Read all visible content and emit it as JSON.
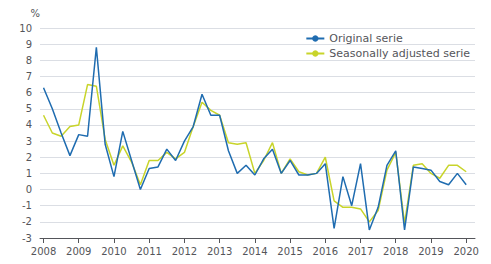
{
  "chart_data": {
    "type": "line",
    "ylabel": "%",
    "x": [
      2008.0,
      2008.25,
      2008.5,
      2008.75,
      2009.0,
      2009.25,
      2009.5,
      2009.75,
      2010.0,
      2010.25,
      2010.5,
      2010.75,
      2011.0,
      2011.25,
      2011.5,
      2011.75,
      2012.0,
      2012.25,
      2012.5,
      2012.75,
      2013.0,
      2013.25,
      2013.5,
      2013.75,
      2014.0,
      2014.25,
      2014.5,
      2014.75,
      2015.0,
      2015.25,
      2015.5,
      2015.75,
      2016.0,
      2016.25,
      2016.5,
      2016.75,
      2017.0,
      2017.25,
      2017.5,
      2017.75,
      2018.0,
      2018.25,
      2018.5,
      2018.75,
      2019.0,
      2019.25,
      2019.5,
      2019.75,
      2020.0
    ],
    "series": [
      {
        "name": "Seasonally adjusted serie",
        "color": "#c8d42a",
        "values": [
          4.6,
          3.5,
          3.3,
          3.9,
          4.0,
          6.5,
          6.4,
          3.1,
          1.5,
          2.7,
          1.7,
          0.3,
          1.8,
          1.8,
          2.3,
          1.9,
          2.3,
          3.9,
          5.4,
          4.9,
          4.6,
          2.9,
          2.8,
          2.9,
          1.0,
          1.8,
          2.9,
          1.0,
          1.9,
          1.1,
          0.9,
          1.0,
          2.0,
          -0.7,
          -1.1,
          -1.1,
          -1.2,
          -2.0,
          -1.3,
          1.2,
          2.3,
          -2.1,
          1.5,
          1.6,
          1.0,
          0.7,
          1.5,
          1.5,
          1.1
        ]
      },
      {
        "name": "Original serie",
        "color": "#1f6cb0",
        "values": [
          6.3,
          5.0,
          3.5,
          2.1,
          3.4,
          3.3,
          8.8,
          2.8,
          0.8,
          3.6,
          1.8,
          0.0,
          1.3,
          1.4,
          2.5,
          1.8,
          3.0,
          3.9,
          5.9,
          4.6,
          4.6,
          2.4,
          1.0,
          1.5,
          0.9,
          1.9,
          2.5,
          1.0,
          1.8,
          0.9,
          0.9,
          1.0,
          1.6,
          -2.4,
          0.8,
          -1.0,
          1.6,
          -2.5,
          -1.1,
          1.5,
          2.4,
          -2.5,
          1.4,
          1.3,
          1.2,
          0.5,
          0.3,
          1.0,
          0.3
        ]
      }
    ],
    "xlim": [
      2007.9,
      2020.25
    ],
    "xticks": [
      2008,
      2009,
      2010,
      2011,
      2012,
      2013,
      2014,
      2015,
      2016,
      2017,
      2018,
      2019,
      2020
    ],
    "ylim": [
      -3,
      10
    ],
    "yticks": [
      -3,
      -2,
      -1,
      0,
      1,
      2,
      3,
      4,
      5,
      6,
      7,
      8,
      9,
      10
    ],
    "grid": true,
    "legend": "upper right"
  }
}
